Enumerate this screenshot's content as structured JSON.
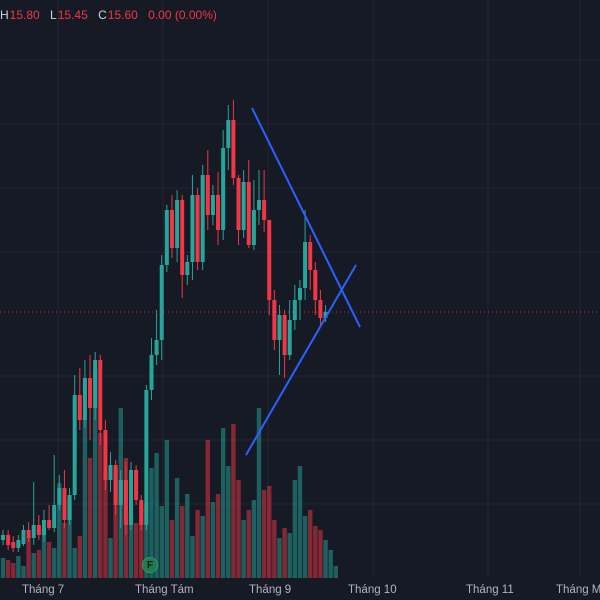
{
  "legend": {
    "high_label": "H",
    "high_value": "15.80",
    "low_label": "L",
    "low_value": "15.45",
    "close_label": "C",
    "close_value": "15.60",
    "change_value": "0.00 (0.00%)"
  },
  "axis": {
    "months": [
      "Tháng 7",
      "Tháng Tám",
      "Tháng 9",
      "Tháng 10",
      "Tháng 11",
      "Tháng Mư"
    ]
  },
  "marker": {
    "label": "F"
  },
  "colors": {
    "background": "#161a25",
    "up": "#26a69a",
    "down": "#f23645",
    "trendline": "#2962ff",
    "grid": "#232733"
  }
}
